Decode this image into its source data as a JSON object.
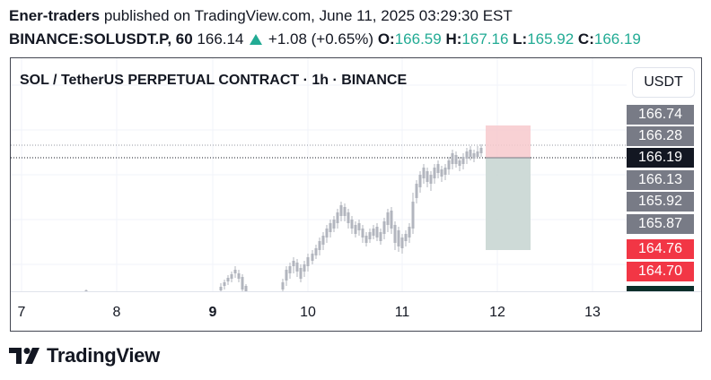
{
  "header": {
    "author": "Ener-traders",
    "published_text": "published on TradingView.com, June 11, 2025 03:29:30 EST",
    "symbol": "BINANCE:SOLUSDT.P, 60",
    "price": "166.14",
    "change": "+1.08 (+0.65%)",
    "o_label": "O:",
    "o_value": "166.59",
    "h_label": "H:",
    "h_value": "167.16",
    "l_label": "L:",
    "l_value": "165.92",
    "c_label": "C:",
    "c_value": "166.19"
  },
  "chart": {
    "title": "SOL / TetherUS PERPETUAL CONTRACT · 1h · BINANCE",
    "currency_button": "USDT",
    "x_labels": [
      "7",
      "8",
      "9",
      "10",
      "11",
      "12",
      "13"
    ],
    "price_tags": [
      {
        "value": "166.74",
        "color": "#787b86"
      },
      {
        "value": "166.28",
        "color": "#787b86"
      },
      {
        "value": "166.19",
        "color": "#131722"
      },
      {
        "value": "166.13",
        "color": "#787b86"
      },
      {
        "value": "165.92",
        "color": "#787b86"
      },
      {
        "value": "165.87",
        "color": "#787b86"
      },
      {
        "value": "164.76",
        "color": "#f23645"
      },
      {
        "value": "164.70",
        "color": "#f23645"
      }
    ],
    "colors": {
      "up_candle": "#b2b5be",
      "down_candle": "#131722",
      "stop_zone": "#f7c9cc",
      "target_zone": "#c9d6d3"
    }
  },
  "footer": {
    "brand": "TradingView"
  }
}
